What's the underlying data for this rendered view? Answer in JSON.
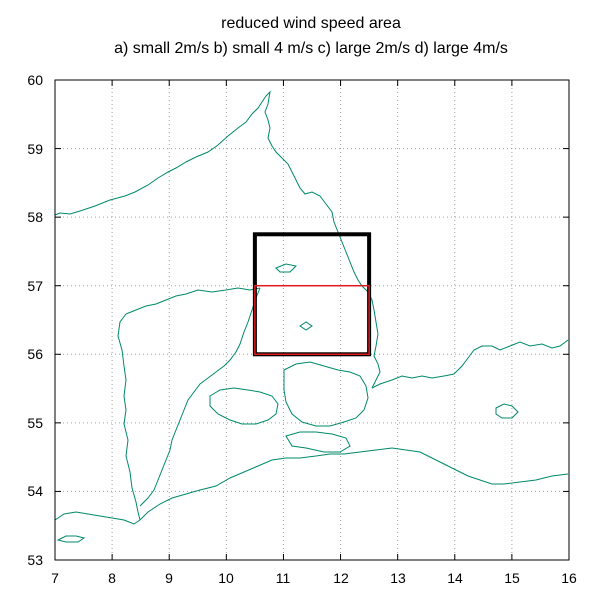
{
  "title": {
    "line1": "reduced wind speed area",
    "line2": "a) small 2m/s b) small 4 m/s c) large 2m/s d) large 4m/s"
  },
  "axes": {
    "x_ticks": [
      "7",
      "8",
      "9",
      "10",
      "11",
      "12",
      "13",
      "14",
      "15",
      "16"
    ],
    "y_ticks": [
      "53",
      "54",
      "55",
      "56",
      "57",
      "58",
      "59",
      "60"
    ]
  },
  "colors": {
    "coastline": "#00896a",
    "large_box": "#000000",
    "small_box": "#e0191b",
    "grid": "#a0a0a0"
  },
  "chart_data": {
    "type": "map",
    "xlim": [
      7,
      16
    ],
    "ylim": [
      53,
      60
    ],
    "grid": true,
    "x_ticks": [
      7,
      8,
      9,
      10,
      11,
      12,
      13,
      14,
      15,
      16
    ],
    "y_ticks": [
      53,
      54,
      55,
      56,
      57,
      58,
      59,
      60
    ],
    "regions": [
      {
        "kind": "large area",
        "color": "#000000",
        "lon": [
          10.5,
          12.5
        ],
        "lat": [
          56.0,
          57.75
        ]
      },
      {
        "kind": "small area",
        "color": "#e0191b",
        "lon": [
          10.5,
          12.5
        ],
        "lat": [
          56.0,
          57.0
        ]
      }
    ]
  }
}
